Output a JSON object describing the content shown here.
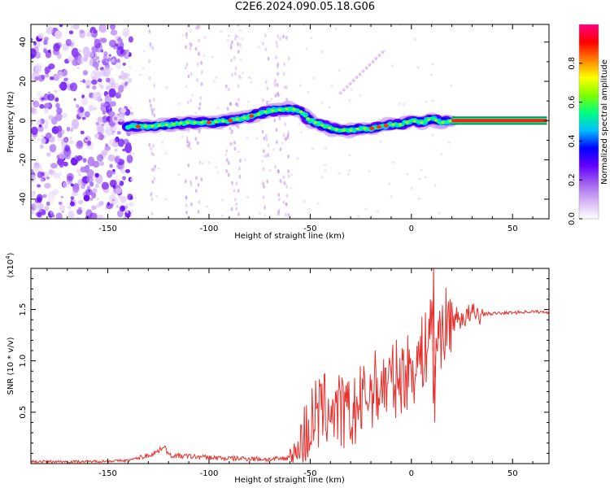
{
  "title": "C2E6.2024.090.05.18.G06",
  "chart_data": [
    {
      "type": "heatmap",
      "name": "spectrogram",
      "xlabel": "Height of straight line (km)",
      "ylabel": "Frequency (Hz)",
      "xlim": [
        -188,
        68
      ],
      "ylim": [
        -50,
        49
      ],
      "xticks": [
        -150,
        -100,
        -50,
        0,
        50
      ],
      "xtick_labels": [
        "-150",
        "-100",
        "-50",
        "0",
        "50"
      ],
      "yticks": [
        -40,
        -20,
        0,
        20,
        40
      ],
      "ytick_labels": [
        "-40",
        "-20",
        "0",
        "20",
        "40"
      ],
      "colorbar": {
        "label": "Normalized spectral amplitude",
        "range": [
          0,
          1
        ],
        "ticks": [
          0.0,
          0.2,
          0.4,
          0.6,
          0.8
        ],
        "tick_labels": [
          "0.0",
          "0.2",
          "0.4",
          "0.6",
          "0.8"
        ],
        "colormap": [
          "#ffffff",
          "#d6b4f4",
          "#a060f0",
          "#6400ff",
          "#0000ff",
          "#00c0ff",
          "#00ff80",
          "#80ff00",
          "#ffff00",
          "#ff8000",
          "#ff0000",
          "#ff0080"
        ]
      },
      "signal_trace": {
        "x": [
          -140,
          -130,
          -120,
          -110,
          -100,
          -90,
          -80,
          -70,
          -60,
          -55,
          -50,
          -45,
          -40,
          -35,
          -30,
          -25,
          -20,
          -15,
          -10,
          -5,
          0,
          5,
          10,
          15,
          20,
          30,
          40,
          50,
          60,
          67
        ],
        "y": [
          -3,
          -3,
          -2,
          -1,
          -1,
          0,
          2,
          5,
          6,
          5,
          0,
          -2,
          -4,
          -5,
          -5,
          -4,
          -4,
          -3,
          -2,
          -2,
          0,
          -1,
          1,
          -1,
          0,
          0,
          0,
          0,
          0,
          0
        ]
      }
    },
    {
      "type": "line",
      "name": "snr",
      "xlabel": "Height of straight line (km)",
      "ylabel": "SNR (10 * v/v)",
      "multiplier_label": "(x10",
      "multiplier_exp": "4",
      "multiplier_close": ")",
      "xlim": [
        -188,
        68
      ],
      "ylim": [
        0,
        1.9
      ],
      "xticks": [
        -150,
        -100,
        -50,
        0,
        50
      ],
      "xtick_labels": [
        "-150",
        "-100",
        "-50",
        "0",
        "50"
      ],
      "yticks": [
        0.5,
        1.0,
        1.5
      ],
      "ytick_labels": [
        "0.5",
        "1.0",
        "1.5"
      ],
      "line_color": "#e8302c",
      "series": [
        {
          "x": [
            -188,
            -160,
            -140,
            -130,
            -125,
            -122,
            -120,
            -110,
            -100,
            -90,
            -80,
            -70,
            -62,
            -56,
            -52,
            -48,
            -45,
            -40,
            -35,
            -30,
            -25,
            -20,
            -15,
            -10,
            -5,
            0,
            5,
            8,
            10,
            11,
            12,
            15,
            20,
            25,
            30,
            40,
            50,
            60,
            68
          ],
          "y": [
            0.02,
            0.02,
            0.03,
            0.08,
            0.12,
            0.18,
            0.08,
            0.07,
            0.06,
            0.05,
            0.05,
            0.04,
            0.05,
            0.12,
            0.3,
            0.45,
            0.5,
            0.55,
            0.5,
            0.45,
            0.58,
            0.72,
            0.75,
            0.8,
            0.85,
            0.92,
            1.05,
            1.15,
            1.55,
            0.5,
            1.2,
            1.3,
            1.4,
            1.42,
            1.45,
            1.46,
            1.47,
            1.48,
            1.47
          ]
        }
      ]
    }
  ]
}
